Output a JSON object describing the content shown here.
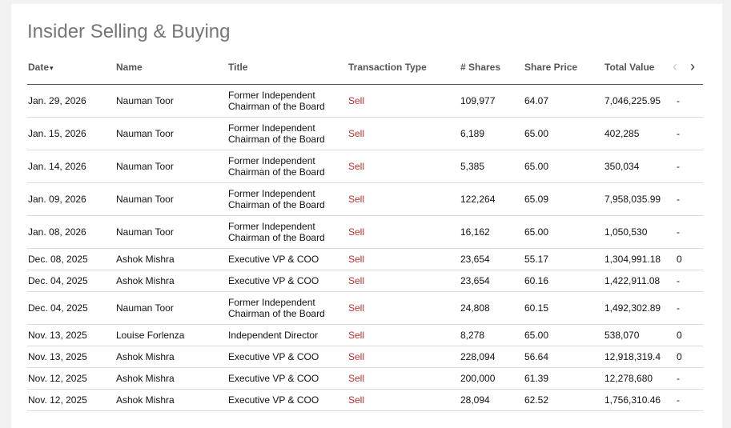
{
  "page": {
    "title": "Insider Selling & Buying"
  },
  "columns": {
    "date": "Date",
    "sort_indicator": "▾",
    "name": "Name",
    "title": "Title",
    "type": "Transaction Type",
    "shares": "# Shares",
    "price": "Share Price",
    "total": "Total Value",
    "prev_icon": "‹",
    "next_icon": "›"
  },
  "rows": [
    {
      "date": "Jan. 29, 2026",
      "name": "Nauman Toor",
      "title": "Former Independent Chairman of the Board",
      "type": "Sell",
      "shares": "109,977",
      "price": "64.07",
      "total": "7,046,225.95",
      "extra": "-"
    },
    {
      "date": "Jan. 15, 2026",
      "name": "Nauman Toor",
      "title": "Former Independent Chairman of the Board",
      "type": "Sell",
      "shares": "6,189",
      "price": "65.00",
      "total": "402,285",
      "extra": "-"
    },
    {
      "date": "Jan. 14, 2026",
      "name": "Nauman Toor",
      "title": "Former Independent Chairman of the Board",
      "type": "Sell",
      "shares": "5,385",
      "price": "65.00",
      "total": "350,034",
      "extra": "-"
    },
    {
      "date": "Jan. 09, 2026",
      "name": "Nauman Toor",
      "title": "Former Independent Chairman of the Board",
      "type": "Sell",
      "shares": "122,264",
      "price": "65.09",
      "total": "7,958,035.99",
      "extra": "-"
    },
    {
      "date": "Jan. 08, 2026",
      "name": "Nauman Toor",
      "title": "Former Independent Chairman of the Board",
      "type": "Sell",
      "shares": "16,162",
      "price": "65.00",
      "total": "1,050,530",
      "extra": "-"
    },
    {
      "date": "Dec. 08, 2025",
      "name": "Ashok Mishra",
      "title": "Executive VP & COO",
      "type": "Sell",
      "shares": "23,654",
      "price": "55.17",
      "total": "1,304,991.18",
      "extra": "0"
    },
    {
      "date": "Dec. 04, 2025",
      "name": "Ashok Mishra",
      "title": "Executive VP & COO",
      "type": "Sell",
      "shares": "23,654",
      "price": "60.16",
      "total": "1,422,911.08",
      "extra": "-"
    },
    {
      "date": "Dec. 04, 2025",
      "name": "Nauman Toor",
      "title": "Former Independent Chairman of the Board",
      "type": "Sell",
      "shares": "24,808",
      "price": "60.15",
      "total": "1,492,302.89",
      "extra": "-"
    },
    {
      "date": "Nov. 13, 2025",
      "name": "Louise Forlenza",
      "title": "Independent Director",
      "type": "Sell",
      "shares": "8,278",
      "price": "65.00",
      "total": "538,070",
      "extra": "0"
    },
    {
      "date": "Nov. 13, 2025",
      "name": "Ashok Mishra",
      "title": "Executive VP & COO",
      "type": "Sell",
      "shares": "228,094",
      "price": "56.64",
      "total": "12,918,319.4",
      "extra": "0"
    },
    {
      "date": "Nov. 12, 2025",
      "name": "Ashok Mishra",
      "title": "Executive VP & COO",
      "type": "Sell",
      "shares": "200,000",
      "price": "61.39",
      "total": "12,278,680",
      "extra": "-"
    },
    {
      "date": "Nov. 12, 2025",
      "name": "Ashok Mishra",
      "title": "Executive VP & COO",
      "type": "Sell",
      "shares": "28,094",
      "price": "62.52",
      "total": "1,756,310.46",
      "extra": "-"
    }
  ]
}
